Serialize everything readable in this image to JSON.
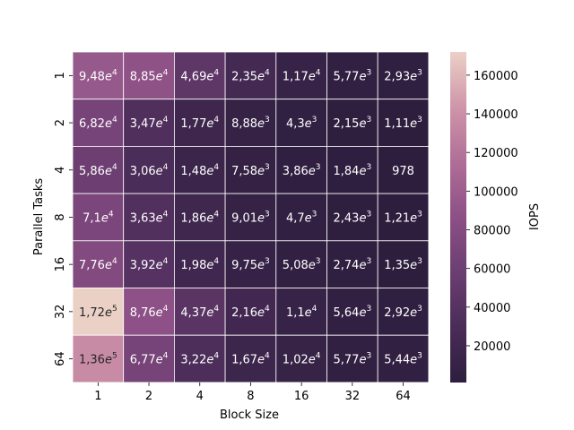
{
  "chart_data": {
    "type": "heatmap",
    "xlabel": "Block Size",
    "ylabel": "Parallel Tasks",
    "colorbar_label": "IOPS",
    "x_categories": [
      "1",
      "2",
      "4",
      "8",
      "16",
      "32",
      "64"
    ],
    "y_categories": [
      "1",
      "2",
      "4",
      "8",
      "16",
      "32",
      "64"
    ],
    "values": [
      [
        94800,
        88500,
        46900,
        23500,
        11700,
        5770,
        2930
      ],
      [
        68200,
        34700,
        17700,
        8880,
        4300,
        2150,
        1110
      ],
      [
        58600,
        30600,
        14800,
        7580,
        3860,
        1840,
        978
      ],
      [
        71000,
        36300,
        18600,
        9010,
        4700,
        2430,
        1210
      ],
      [
        77600,
        39200,
        19800,
        9750,
        5080,
        2740,
        1350
      ],
      [
        172000,
        87600,
        43700,
        21600,
        11000,
        5640,
        2920
      ],
      [
        136000,
        67700,
        32200,
        16700,
        10200,
        5770,
        5440
      ]
    ],
    "annotations": [
      [
        {
          "m": "9,48",
          "e": "4"
        },
        {
          "m": "8,85",
          "e": "4"
        },
        {
          "m": "4,69",
          "e": "4"
        },
        {
          "m": "2,35",
          "e": "4"
        },
        {
          "m": "1,17",
          "e": "4"
        },
        {
          "m": "5,77",
          "e": "3"
        },
        {
          "m": "2,93",
          "e": "3"
        }
      ],
      [
        {
          "m": "6,82",
          "e": "4"
        },
        {
          "m": "3,47",
          "e": "4"
        },
        {
          "m": "1,77",
          "e": "4"
        },
        {
          "m": "8,88",
          "e": "3"
        },
        {
          "m": "4,3",
          "e": "3"
        },
        {
          "m": "2,15",
          "e": "3"
        },
        {
          "m": "1,11",
          "e": "3"
        }
      ],
      [
        {
          "m": "5,86",
          "e": "4"
        },
        {
          "m": "3,06",
          "e": "4"
        },
        {
          "m": "1,48",
          "e": "4"
        },
        {
          "m": "7,58",
          "e": "3"
        },
        {
          "m": "3,86",
          "e": "3"
        },
        {
          "m": "1,84",
          "e": "3"
        },
        {
          "m": "978",
          "e": ""
        }
      ],
      [
        {
          "m": "7,1",
          "e": "4"
        },
        {
          "m": "3,63",
          "e": "4"
        },
        {
          "m": "1,86",
          "e": "4"
        },
        {
          "m": "9,01",
          "e": "3"
        },
        {
          "m": "4,7",
          "e": "3"
        },
        {
          "m": "2,43",
          "e": "3"
        },
        {
          "m": "1,21",
          "e": "3"
        }
      ],
      [
        {
          "m": "7,76",
          "e": "4"
        },
        {
          "m": "3,92",
          "e": "4"
        },
        {
          "m": "1,98",
          "e": "4"
        },
        {
          "m": "9,75",
          "e": "3"
        },
        {
          "m": "5,08",
          "e": "3"
        },
        {
          "m": "2,74",
          "e": "3"
        },
        {
          "m": "1,35",
          "e": "3"
        }
      ],
      [
        {
          "m": "1,72",
          "e": "5"
        },
        {
          "m": "8,76",
          "e": "4"
        },
        {
          "m": "4,37",
          "e": "4"
        },
        {
          "m": "2,16",
          "e": "4"
        },
        {
          "m": "1,1",
          "e": "4"
        },
        {
          "m": "5,64",
          "e": "3"
        },
        {
          "m": "2,92",
          "e": "3"
        }
      ],
      [
        {
          "m": "1,36",
          "e": "5"
        },
        {
          "m": "6,77",
          "e": "4"
        },
        {
          "m": "3,22",
          "e": "4"
        },
        {
          "m": "1,67",
          "e": "4"
        },
        {
          "m": "1,02",
          "e": "4"
        },
        {
          "m": "5,77",
          "e": "3"
        },
        {
          "m": "5,44",
          "e": "3"
        }
      ]
    ],
    "colorbar_ticks": [
      20000,
      40000,
      60000,
      80000,
      100000,
      120000,
      140000,
      160000
    ],
    "colorbar_tick_labels": [
      "20000",
      "40000",
      "60000",
      "80000",
      "100000",
      "120000",
      "140000",
      "160000"
    ],
    "vmin": 978,
    "vmax": 172000,
    "colormap": [
      "#2d1e3e",
      "#4a2c58",
      "#6b3e71",
      "#8c5086",
      "#b06e97",
      "#cf95aa",
      "#ebd0c6"
    ],
    "legend_placement": "right",
    "grid": false
  }
}
